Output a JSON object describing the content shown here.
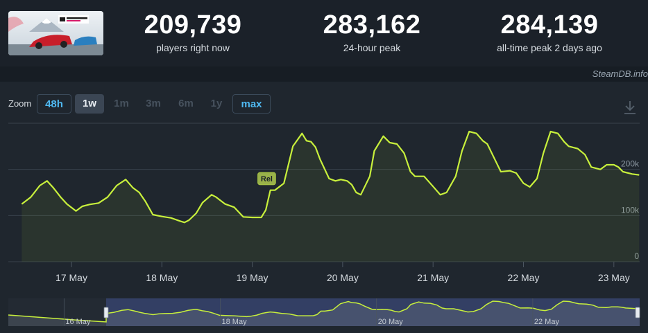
{
  "header": {
    "stats": [
      {
        "value": "209,739",
        "label": "players right now"
      },
      {
        "value": "283,162",
        "label": "24-hour peak"
      },
      {
        "value": "284,139",
        "label": "all-time peak 2 days ago"
      }
    ]
  },
  "credit": "SteamDB.info",
  "zoom": {
    "label": "Zoom",
    "buttons": [
      "48h",
      "1w",
      "1m",
      "3m",
      "6m",
      "1y",
      "max"
    ]
  },
  "colors": {
    "line": "#c8f03c",
    "background": "#1f262e",
    "navigator": "#3a4775"
  },
  "chart_data": {
    "type": "line",
    "x_tick_labels": [
      "17 May",
      "18 May",
      "19 May",
      "20 May",
      "21 May",
      "22 May",
      "23 May"
    ],
    "y_tick_labels": [
      "0",
      "100k",
      "200k"
    ],
    "ylim": [
      0,
      300000
    ],
    "grid": true,
    "annotation": "Rel",
    "x_unit": "days from 00:00 17 May",
    "series": [
      {
        "x": [
          -0.55,
          -0.45,
          -0.35,
          -0.27,
          -0.2,
          -0.12,
          -0.05,
          0.05,
          0.12,
          0.2,
          0.3,
          0.4,
          0.5,
          0.6,
          0.68,
          0.75,
          0.82,
          0.9,
          1.0,
          1.1,
          1.2,
          1.25,
          1.3,
          1.38,
          1.45,
          1.55,
          1.6,
          1.7,
          1.8,
          1.9,
          2.0,
          2.1,
          2.15,
          2.2,
          2.25,
          2.35,
          2.45,
          2.55,
          2.6,
          2.65,
          2.7,
          2.75,
          2.85,
          2.92,
          2.98,
          3.05,
          3.1,
          3.15,
          3.2,
          3.3,
          3.35,
          3.45,
          3.52,
          3.6,
          3.68,
          3.75,
          3.8,
          3.9,
          4.0,
          4.08,
          4.15,
          4.25,
          4.32,
          4.4,
          4.48,
          4.55,
          4.6,
          4.7,
          4.75,
          4.85,
          4.92,
          5.0,
          5.07,
          5.15,
          5.22,
          5.3,
          5.38,
          5.45,
          5.5,
          5.6,
          5.68,
          5.75,
          5.85,
          5.92,
          6.0,
          6.05,
          6.1,
          6.2,
          6.28
        ],
        "y": [
          125000,
          140000,
          165000,
          175000,
          160000,
          140000,
          125000,
          110000,
          120000,
          124000,
          127000,
          140000,
          165000,
          178000,
          160000,
          150000,
          130000,
          102000,
          98000,
          95000,
          88000,
          85000,
          90000,
          105000,
          128000,
          145000,
          140000,
          125000,
          118000,
          97000,
          96000,
          96000,
          112000,
          155000,
          155000,
          170000,
          250000,
          278000,
          262000,
          260000,
          248000,
          222000,
          180000,
          175000,
          178000,
          175000,
          167000,
          150000,
          145000,
          185000,
          240000,
          272000,
          258000,
          255000,
          235000,
          195000,
          185000,
          185000,
          163000,
          145000,
          150000,
          185000,
          240000,
          282000,
          278000,
          262000,
          255000,
          215000,
          195000,
          197000,
          192000,
          170000,
          162000,
          180000,
          235000,
          282000,
          278000,
          260000,
          250000,
          245000,
          232000,
          205000,
          200000,
          210000,
          210000,
          205000,
          195000,
          190000,
          188000
        ]
      }
    ]
  }
}
